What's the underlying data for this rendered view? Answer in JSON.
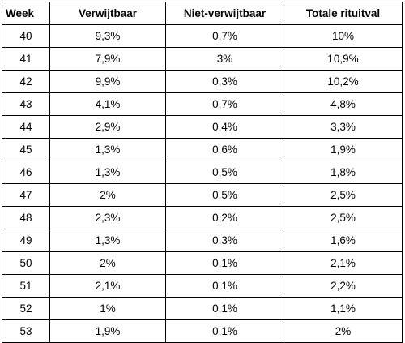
{
  "table": {
    "headers": [
      "Week",
      "Verwijtbaar",
      "Niet-verwijtbaar",
      "Totale rituitval"
    ],
    "rows": [
      [
        "40",
        "9,3%",
        "0,7%",
        "10%"
      ],
      [
        "41",
        "7,9%",
        "3%",
        "10,9%"
      ],
      [
        "42",
        "9,9%",
        "0,3%",
        "10,2%"
      ],
      [
        "43",
        "4,1%",
        "0,7%",
        "4,8%"
      ],
      [
        "44",
        "2,9%",
        "0,4%",
        "3,3%"
      ],
      [
        "45",
        "1,3%",
        "0,6%",
        "1,9%"
      ],
      [
        "46",
        "1,3%",
        "0,5%",
        "1,8%"
      ],
      [
        "47",
        "2%",
        "0,5%",
        "2,5%"
      ],
      [
        "48",
        "2,3%",
        "0,2%",
        "2,5%"
      ],
      [
        "49",
        "1,3%",
        "0,3%",
        "1,6%"
      ],
      [
        "50",
        "2%",
        "0,1%",
        "2,1%"
      ],
      [
        "51",
        "2,1%",
        "0,1%",
        "2,2%"
      ],
      [
        "52",
        "1%",
        "0,1%",
        "1,1%"
      ],
      [
        "53",
        "1,9%",
        "0,1%",
        "2%"
      ]
    ]
  }
}
